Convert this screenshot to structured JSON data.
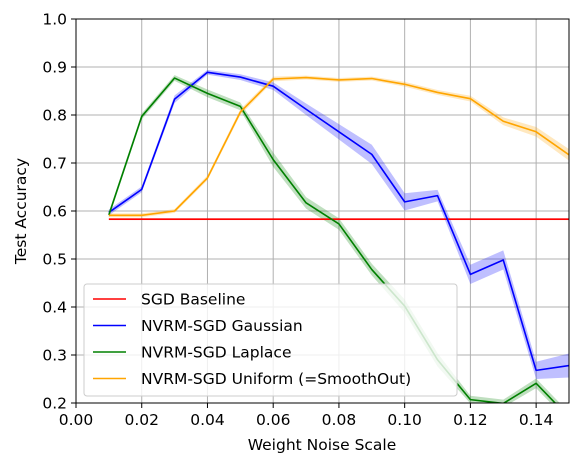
{
  "chart_data": {
    "type": "line",
    "title": "",
    "xlabel": "Weight Noise Scale",
    "ylabel": "Test Accuracy",
    "xlim": [
      0.0,
      0.15
    ],
    "ylim": [
      0.2,
      1.0
    ],
    "xticks": [
      "0.00",
      "0.02",
      "0.04",
      "0.06",
      "0.08",
      "0.10",
      "0.12",
      "0.14"
    ],
    "xtick_values": [
      0.0,
      0.02,
      0.04,
      0.06,
      0.08,
      0.1,
      0.12,
      0.14
    ],
    "yticks": [
      "0.2",
      "0.3",
      "0.4",
      "0.5",
      "0.6",
      "0.7",
      "0.8",
      "0.9",
      "1.0"
    ],
    "ytick_values": [
      0.2,
      0.3,
      0.4,
      0.5,
      0.6,
      0.7,
      0.8,
      0.9,
      1.0
    ],
    "grid": true,
    "legend_position": "lower-left",
    "series": [
      {
        "name": "SGD Baseline",
        "color": "#ff0000",
        "x": [
          0.01,
          0.15
        ],
        "y": [
          0.583,
          0.583
        ],
        "band": [
          0.002,
          0.002
        ]
      },
      {
        "name": "NVRM-SGD Gaussian",
        "color": "#0000ff",
        "x": [
          0.01,
          0.02,
          0.03,
          0.04,
          0.05,
          0.06,
          0.07,
          0.08,
          0.09,
          0.1,
          0.11,
          0.12,
          0.13,
          0.14,
          0.15
        ],
        "y": [
          0.597,
          0.645,
          0.833,
          0.889,
          0.879,
          0.86,
          0.812,
          0.765,
          0.718,
          0.619,
          0.632,
          0.468,
          0.498,
          0.268,
          0.278
        ],
        "band": [
          0.006,
          0.006,
          0.008,
          0.005,
          0.006,
          0.008,
          0.012,
          0.016,
          0.02,
          0.018,
          0.012,
          0.02,
          0.02,
          0.018,
          0.025
        ]
      },
      {
        "name": "NVRM-SGD Laplace",
        "color": "#008000",
        "x": [
          0.01,
          0.02,
          0.03,
          0.04,
          0.05,
          0.06,
          0.07,
          0.08,
          0.09,
          0.1,
          0.11,
          0.12,
          0.13,
          0.14,
          0.15
        ],
        "y": [
          0.592,
          0.797,
          0.877,
          0.845,
          0.818,
          0.707,
          0.617,
          0.573,
          0.478,
          0.402,
          0.29,
          0.207,
          0.199,
          0.241,
          0.17
        ],
        "band": [
          0.006,
          0.006,
          0.006,
          0.008,
          0.008,
          0.015,
          0.012,
          0.012,
          0.012,
          0.014,
          0.014,
          0.008,
          0.008,
          0.01,
          0.01
        ]
      },
      {
        "name": "NVRM-SGD Uniform (=SmoothOut)",
        "color": "#ffa500",
        "x": [
          0.01,
          0.02,
          0.03,
          0.04,
          0.05,
          0.06,
          0.07,
          0.08,
          0.09,
          0.1,
          0.11,
          0.12,
          0.13,
          0.14,
          0.15
        ],
        "y": [
          0.591,
          0.591,
          0.6,
          0.669,
          0.806,
          0.875,
          0.878,
          0.873,
          0.876,
          0.864,
          0.847,
          0.834,
          0.787,
          0.765,
          0.717
        ],
        "band": [
          0.004,
          0.004,
          0.004,
          0.005,
          0.006,
          0.005,
          0.004,
          0.004,
          0.004,
          0.005,
          0.005,
          0.006,
          0.008,
          0.01,
          0.012
        ]
      }
    ]
  }
}
